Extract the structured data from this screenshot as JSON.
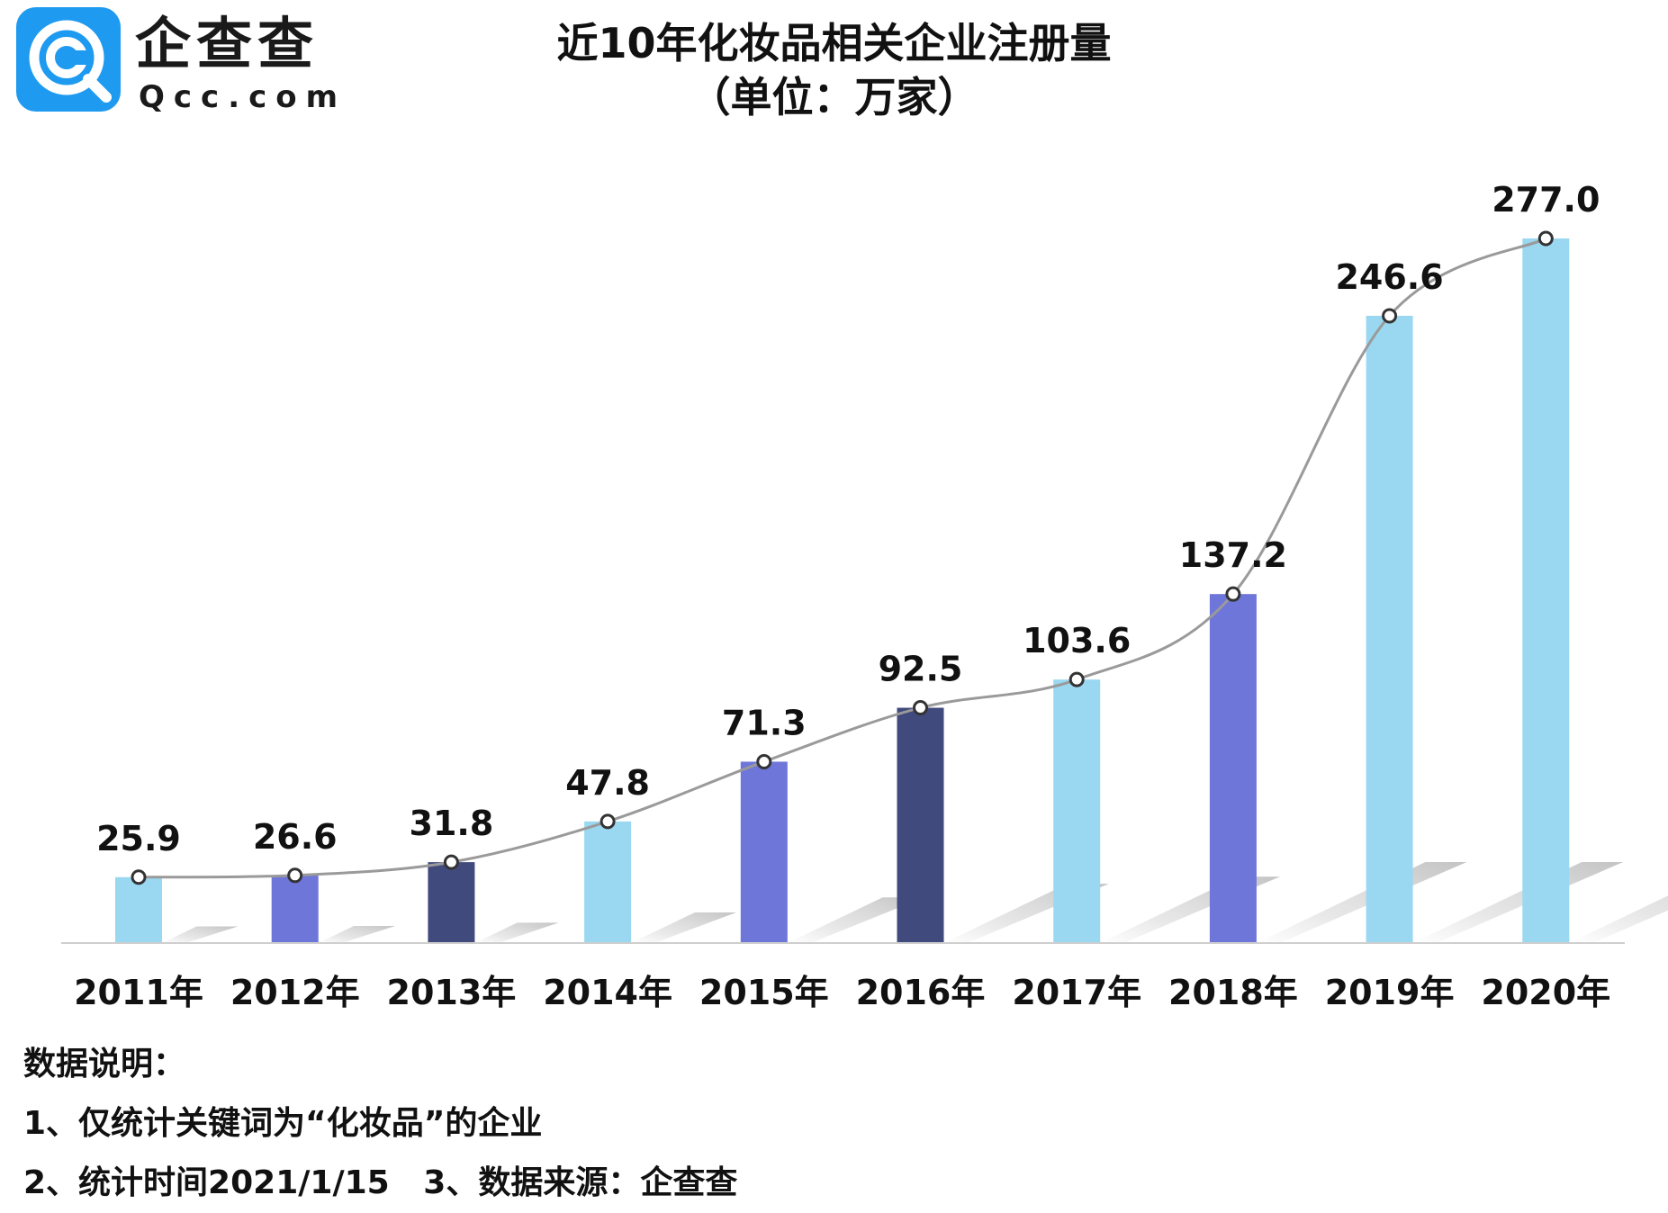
{
  "logo": {
    "name_cn": "企查查",
    "name_en": "Qcc.com"
  },
  "title": {
    "line1": "近10年化妆品相关企业注册量",
    "line2": "（单位：万家）"
  },
  "chart_data": {
    "type": "bar",
    "title": "近10年化妆品相关企业注册量",
    "subtitle": "（单位：万家）",
    "categories": [
      "2011年",
      "2012年",
      "2013年",
      "2014年",
      "2015年",
      "2016年",
      "2017年",
      "2018年",
      "2019年",
      "2020年"
    ],
    "values": [
      25.9,
      26.6,
      31.8,
      47.8,
      71.3,
      92.5,
      103.6,
      137.2,
      246.6,
      277.0
    ],
    "value_labels": [
      "25.9",
      "26.6",
      "31.8",
      "47.8",
      "71.3",
      "92.5",
      "103.6",
      "137.2",
      "246.6",
      "277.0"
    ],
    "bar_colors": [
      "#9ad8f2",
      "#6e76d9",
      "#414a7c",
      "#9ad8f2",
      "#6e76d9",
      "#414a7c",
      "#9ad8f2",
      "#6e76d9",
      "#9ad8f2",
      "#9ad8f2"
    ],
    "trend_line": true,
    "trend_color": "#9a9a9a",
    "ylim": [
      0,
      300
    ],
    "xlabel": "",
    "ylabel": "",
    "grid": false
  },
  "notes": {
    "heading": "数据说明：",
    "line1": "1、仅统计关键词为“化妆品”的企业",
    "line2": "2、统计时间2021/1/15   3、数据来源：企查查"
  }
}
